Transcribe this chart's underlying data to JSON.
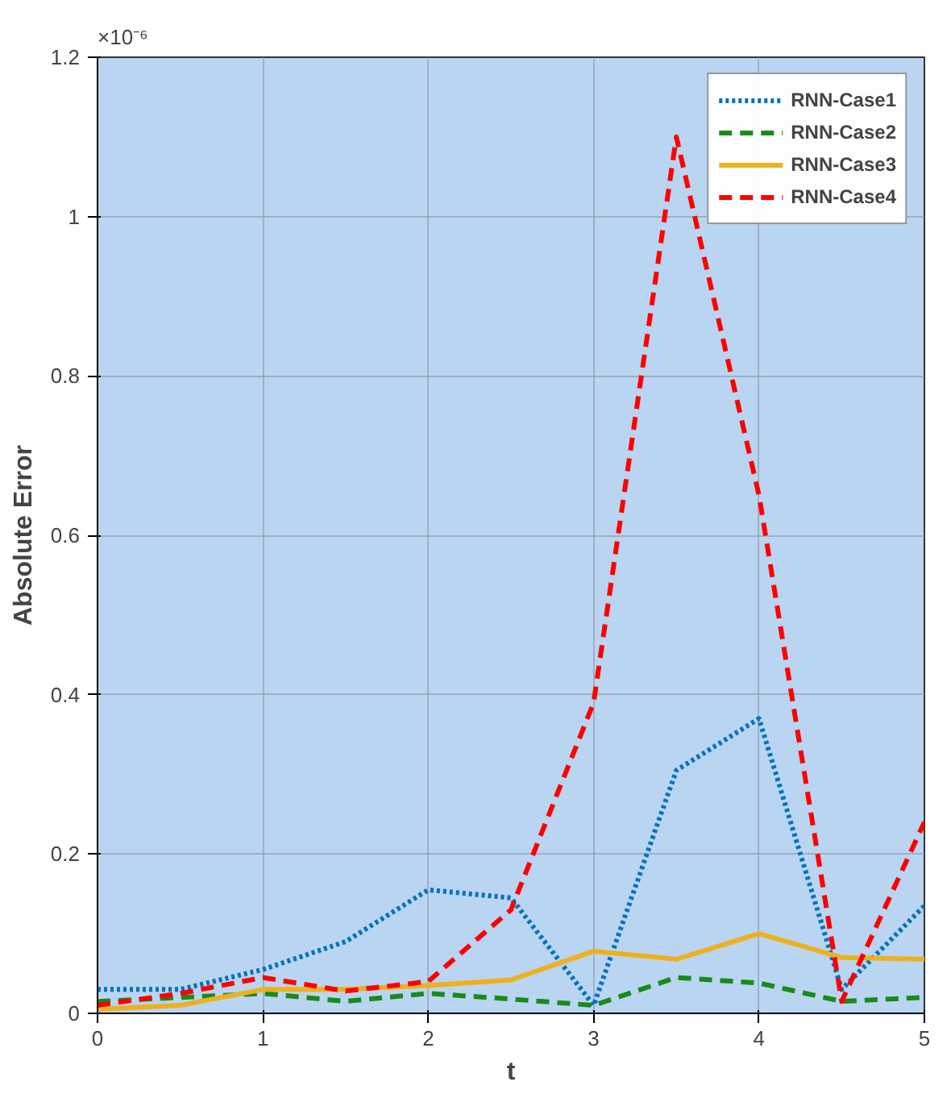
{
  "chart_data": {
    "type": "line",
    "xlabel": "t",
    "ylabel": "Absolute Error",
    "x": [
      0,
      0.5,
      1,
      1.5,
      2,
      2.5,
      3,
      3.5,
      4,
      4.5,
      5
    ],
    "series": [
      {
        "name": "RNN-Case1",
        "color": "#0072bd",
        "line_style": "dotted",
        "values": [
          0.03,
          0.03,
          0.055,
          0.09,
          0.155,
          0.145,
          0.01,
          0.305,
          0.37,
          0.03,
          0.135
        ]
      },
      {
        "name": "RNN-Case2",
        "color": "#1a8a1a",
        "line_style": "dashed",
        "values": [
          0.015,
          0.02,
          0.025,
          0.015,
          0.025,
          0.018,
          0.01,
          0.045,
          0.038,
          0.015,
          0.02
        ]
      },
      {
        "name": "RNN-Case3",
        "color": "#edb120",
        "line_style": "solid",
        "values": [
          0.005,
          0.01,
          0.03,
          0.03,
          0.035,
          0.042,
          0.078,
          0.068,
          0.1,
          0.07,
          0.068
        ]
      },
      {
        "name": "RNN-Case4",
        "color": "#ff0000",
        "line_style": "dashed",
        "values": [
          0.01,
          0.025,
          0.045,
          0.028,
          0.04,
          0.13,
          0.39,
          1.1,
          0.65,
          0.015,
          0.24
        ]
      }
    ],
    "xlim": [
      0,
      5
    ],
    "xticks": [
      0,
      1,
      2,
      3,
      4,
      5
    ],
    "ylim": [
      0,
      1.2
    ],
    "yticks": [
      0,
      0.2,
      0.4,
      0.6,
      0.8,
      1,
      1.2
    ],
    "annotations": [
      "×10⁻⁶"
    ],
    "grid": true,
    "legend": "top right",
    "marker": "none"
  }
}
